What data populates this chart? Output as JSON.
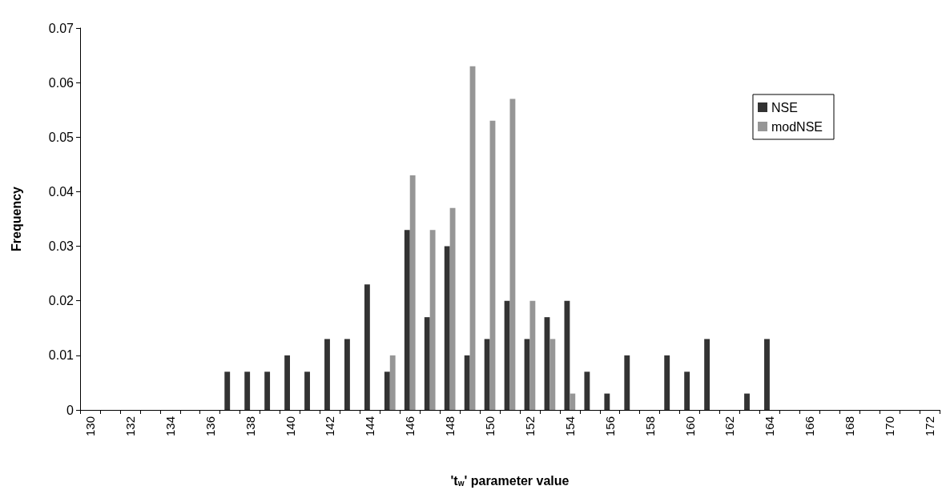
{
  "chart_data": {
    "type": "bar",
    "xlabel": "'t$_{w}$' parameter value",
    "ylabel": "Frequency",
    "categories": [
      "130",
      null,
      "132",
      null,
      "134",
      null,
      "136",
      null,
      "138",
      null,
      "140",
      null,
      "142",
      null,
      "144",
      null,
      "146",
      null,
      "148",
      null,
      "150",
      null,
      "152",
      null,
      "154",
      null,
      "156",
      null,
      "158",
      null,
      "160",
      null,
      "162",
      null,
      "164",
      null,
      "166",
      null,
      "168",
      null,
      "170",
      null,
      "172"
    ],
    "series": [
      {
        "name": "NSE",
        "color": "#333333",
        "values": [
          0,
          0,
          0,
          0,
          0,
          0,
          0,
          0.007,
          0.007,
          0.007,
          0.01,
          0.007,
          0.013,
          0.013,
          0.023,
          0.007,
          0.033,
          0.017,
          0.03,
          0.01,
          0.013,
          0.02,
          0.013,
          0.017,
          0.02,
          0.007,
          0.003,
          0.01,
          0,
          0.01,
          0.007,
          0.013,
          0,
          0.003,
          0.013,
          0,
          0,
          0,
          0,
          0,
          0,
          0,
          0
        ]
      },
      {
        "name": "modNSE",
        "color": "#969696",
        "values": [
          0,
          0,
          0,
          0,
          0,
          0,
          0,
          0,
          0,
          0,
          0,
          0,
          0,
          0,
          0,
          0.01,
          0.043,
          0.033,
          0.037,
          0.063,
          0.053,
          0.057,
          0.02,
          0.013,
          0.003,
          0,
          0,
          0,
          0,
          0,
          0,
          0,
          0,
          0,
          0,
          0,
          0,
          0,
          0,
          0,
          0,
          0,
          0
        ]
      }
    ],
    "ylim": [
      0,
      0.07
    ],
    "yticks": [
      0,
      0.01,
      0.02,
      0.03,
      0.04,
      0.05,
      0.06,
      0.07
    ],
    "grid": false,
    "legend": "top right"
  }
}
